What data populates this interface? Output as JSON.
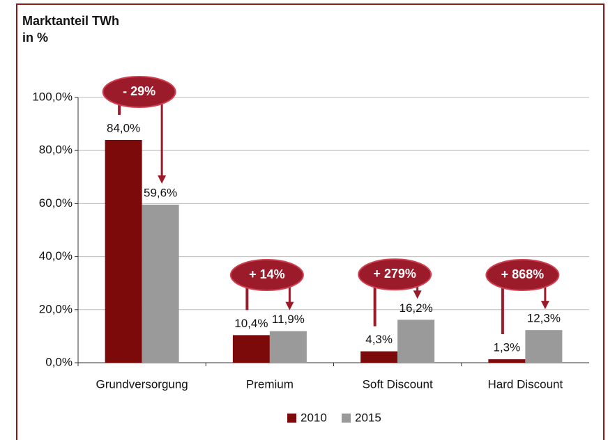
{
  "chart_data": {
    "type": "bar",
    "title": "Marktanteil TWh",
    "subtitle": "in %",
    "categories": [
      "Grundversorgung",
      "Premium",
      "Soft Discount",
      "Hard Discount"
    ],
    "series": [
      {
        "name": "2010",
        "color": "#7d0a0a",
        "values": [
          84.0,
          10.4,
          4.3,
          1.3
        ],
        "value_labels": [
          "84,0%",
          "10,4%",
          "4,3%",
          "1,3%"
        ]
      },
      {
        "name": "2015",
        "color": "#9a9a9a",
        "values": [
          59.6,
          11.9,
          16.2,
          12.3
        ],
        "value_labels": [
          "59,6%",
          "11,9%",
          "16,2%",
          "12,3%"
        ]
      }
    ],
    "annotations": [
      "- 29%",
      "+ 14%",
      "+ 279%",
      "+ 868%"
    ],
    "ylim": [
      0,
      100
    ],
    "yticks": [
      {
        "value": 0,
        "label": "0,0%"
      },
      {
        "value": 20,
        "label": "20,0%"
      },
      {
        "value": 40,
        "label": "40,0%"
      },
      {
        "value": 60,
        "label": "60,0%"
      },
      {
        "value": 80,
        "label": "80,0%"
      },
      {
        "value": 100,
        "label": "100,0%"
      }
    ],
    "grid": true,
    "legend": "bottom"
  }
}
